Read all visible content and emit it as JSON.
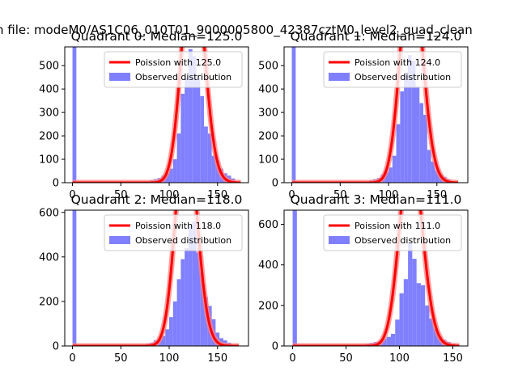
{
  "figure": {
    "suptitle": "n file: modeM0/AS1C06_010T01_9000005800_42387cztM0_level2_quad_clean"
  },
  "colors": {
    "hist": "#8080ff",
    "poisson": "#ff0000",
    "poisson_glow": "#ff8080",
    "frame": "#000000"
  },
  "chart_data": [
    {
      "type": "bar",
      "title": "Quadrant 0: Median=125.0",
      "xlabel": "",
      "ylabel": "",
      "xlim": [
        -8,
        182
      ],
      "ylim": [
        0,
        580
      ],
      "xticks": [
        0,
        50,
        100,
        150
      ],
      "yticks": [
        0,
        100,
        200,
        300,
        400,
        500
      ],
      "bin_width": 4,
      "legend": [
        "Poission with 125.0",
        "Observed distribution"
      ],
      "legend_loc": "upper right",
      "series": [
        {
          "name": "Observed distribution",
          "kind": "histogram",
          "bins": [
            [
              0,
              580
            ],
            [
              80,
              10
            ],
            [
              84,
              15
            ],
            [
              88,
              20
            ],
            [
              92,
              30
            ],
            [
              96,
              40
            ],
            [
              100,
              60
            ],
            [
              104,
              100
            ],
            [
              108,
              210
            ],
            [
              112,
              380
            ],
            [
              116,
              450
            ],
            [
              120,
              570
            ],
            [
              124,
              540
            ],
            [
              128,
              450
            ],
            [
              132,
              370
            ],
            [
              136,
              240
            ],
            [
              140,
              210
            ],
            [
              144,
              115
            ],
            [
              148,
              95
            ],
            [
              152,
              60
            ],
            [
              156,
              40
            ],
            [
              160,
              30
            ],
            [
              164,
              18
            ]
          ]
        },
        {
          "name": "Poission with 125.0",
          "kind": "poisson",
          "mean": 125.0,
          "scale": 28000,
          "x_end": 174
        }
      ]
    },
    {
      "type": "bar",
      "title": "Quadrant 1: Median=124.0",
      "xlabel": "",
      "ylabel": "",
      "xlim": [
        -8,
        182
      ],
      "ylim": [
        0,
        580
      ],
      "xticks": [
        0,
        50,
        100,
        150
      ],
      "yticks": [
        0,
        100,
        200,
        300,
        400,
        500
      ],
      "bin_width": 4,
      "legend": [
        "Poission with 124.0",
        "Observed distribution"
      ],
      "legend_loc": "upper right",
      "series": [
        {
          "name": "Observed distribution",
          "kind": "histogram",
          "bins": [
            [
              0,
              580
            ],
            [
              80,
              10
            ],
            [
              84,
              15
            ],
            [
              88,
              20
            ],
            [
              92,
              35
            ],
            [
              96,
              45
            ],
            [
              100,
              65
            ],
            [
              104,
              115
            ],
            [
              108,
              250
            ],
            [
              112,
              390
            ],
            [
              116,
              470
            ],
            [
              120,
              545
            ],
            [
              124,
              520
            ],
            [
              128,
              410
            ],
            [
              132,
              340
            ],
            [
              136,
              290
            ],
            [
              140,
              140
            ],
            [
              144,
              90
            ],
            [
              148,
              55
            ],
            [
              152,
              35
            ],
            [
              156,
              25
            ],
            [
              160,
              15
            ]
          ]
        },
        {
          "name": "Poission with 124.0",
          "kind": "poisson",
          "mean": 124.0,
          "scale": 27000,
          "x_end": 172
        }
      ]
    },
    {
      "type": "bar",
      "title": "Quadrant 2: Median=118.0",
      "xlabel": "",
      "ylabel": "",
      "xlim": [
        -8,
        182
      ],
      "ylim": [
        0,
        610
      ],
      "xticks": [
        0,
        50,
        100,
        150
      ],
      "yticks": [
        0,
        200,
        400,
        600
      ],
      "bin_width": 4,
      "legend": [
        "Poission with 118.0",
        "Observed distribution"
      ],
      "legend_loc": "upper right",
      "series": [
        {
          "name": "Observed distribution",
          "kind": "histogram",
          "bins": [
            [
              0,
              610
            ],
            [
              76,
              10
            ],
            [
              80,
              15
            ],
            [
              84,
              25
            ],
            [
              88,
              30
            ],
            [
              92,
              45
            ],
            [
              96,
              75
            ],
            [
              100,
              130
            ],
            [
              104,
              200
            ],
            [
              108,
              300
            ],
            [
              112,
              390
            ],
            [
              116,
              440
            ],
            [
              120,
              540
            ],
            [
              124,
              560
            ],
            [
              128,
              420
            ],
            [
              132,
              330
            ],
            [
              136,
              220
            ],
            [
              140,
              180
            ],
            [
              144,
              120
            ],
            [
              148,
              60
            ],
            [
              152,
              35
            ],
            [
              156,
              25
            ],
            [
              160,
              15
            ]
          ]
        },
        {
          "name": "Poission with 118.0",
          "kind": "poisson",
          "mean": 118.0,
          "scale": 27000,
          "x_end": 172
        }
      ]
    },
    {
      "type": "bar",
      "title": "Quadrant 3: Median=111.0",
      "xlabel": "",
      "ylabel": "",
      "xlim": [
        -8,
        164
      ],
      "ylim": [
        0,
        670
      ],
      "xticks": [
        0,
        50,
        100,
        150
      ],
      "yticks": [
        0,
        200,
        400,
        600
      ],
      "bin_width": 4,
      "legend": [
        "Poission with 111.0",
        "Observed distribution"
      ],
      "legend_loc": "upper right",
      "series": [
        {
          "name": "Observed distribution",
          "kind": "histogram",
          "bins": [
            [
              0,
              670
            ],
            [
              68,
              10
            ],
            [
              72,
              15
            ],
            [
              76,
              20
            ],
            [
              80,
              25
            ],
            [
              84,
              35
            ],
            [
              88,
              45
            ],
            [
              92,
              60
            ],
            [
              96,
              130
            ],
            [
              100,
              260
            ],
            [
              104,
              330
            ],
            [
              108,
              510
            ],
            [
              112,
              430
            ],
            [
              116,
              310
            ],
            [
              120,
              300
            ],
            [
              124,
              200
            ],
            [
              128,
              135
            ],
            [
              132,
              85
            ],
            [
              136,
              45
            ],
            [
              140,
              30
            ],
            [
              144,
              20
            ],
            [
              148,
              10
            ]
          ]
        },
        {
          "name": "Poission with 111.0",
          "kind": "poisson",
          "mean": 111.0,
          "scale": 25800,
          "x_end": 156
        }
      ]
    }
  ]
}
